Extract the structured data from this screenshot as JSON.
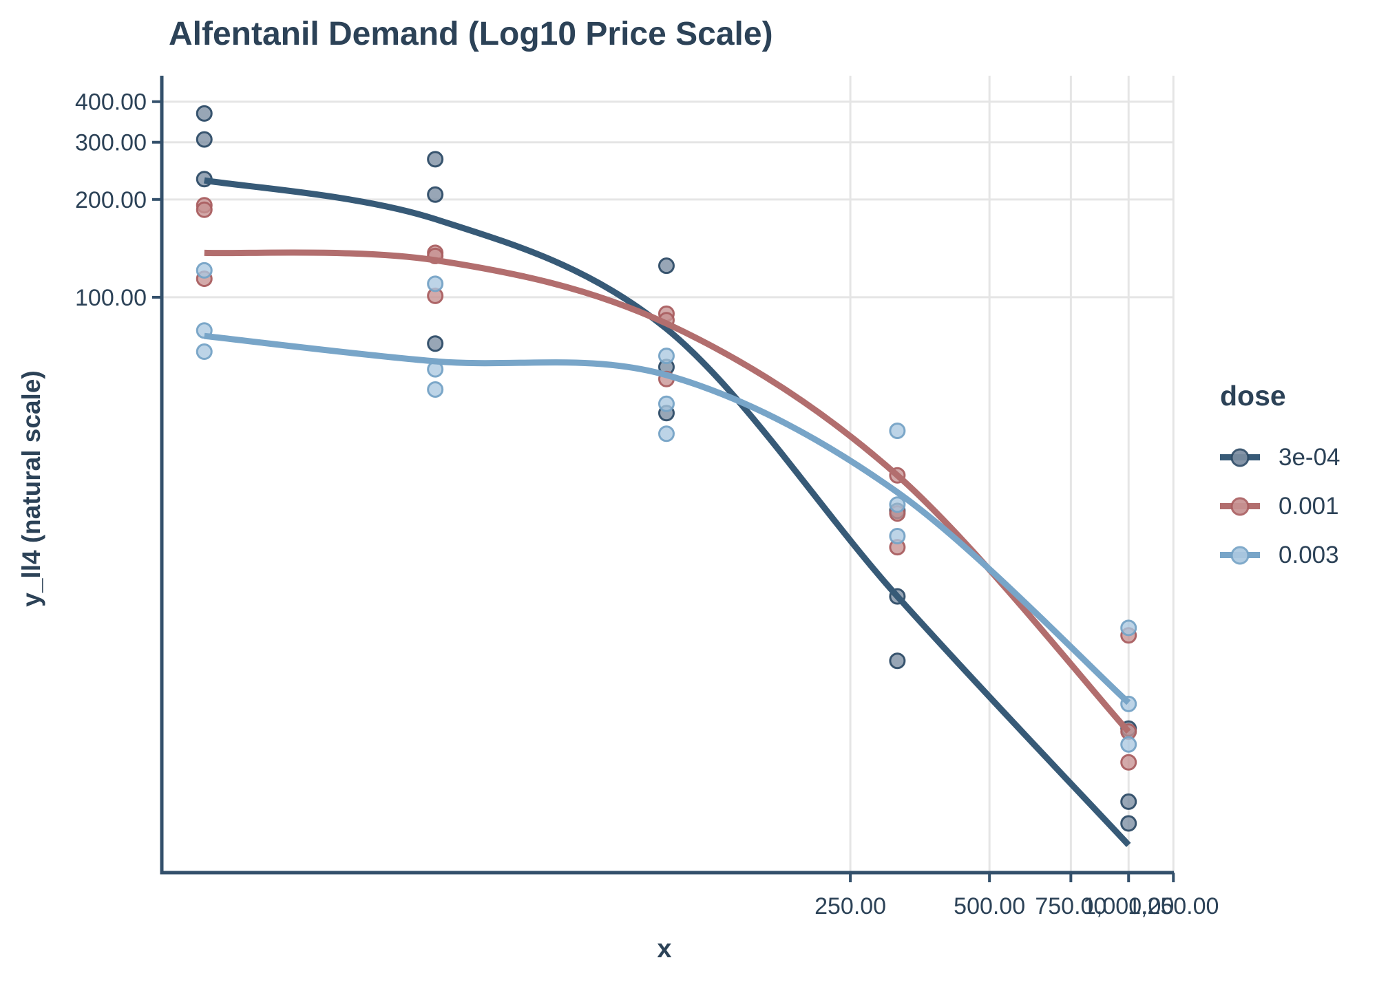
{
  "title": "Alfentanil Demand (Log10 Price Scale)",
  "legend": {
    "title": "dose",
    "items": [
      {
        "label": "3e-04"
      },
      {
        "label": "0.001"
      },
      {
        "label": "0.003"
      }
    ]
  },
  "axes": {
    "x": {
      "label": "x",
      "scale": "log10",
      "tick_values": [
        250,
        500,
        750,
        1000,
        1250
      ],
      "tick_labels": [
        "250.00",
        "500.00",
        "750.00",
        "1,000.00",
        "1,250.00"
      ]
    },
    "y": {
      "label": "y_ll4 (natural scale)",
      "scale": "log10-spaced",
      "tick_values": [
        400,
        300,
        200,
        100
      ],
      "tick_labels": [
        "400.00",
        "300.00",
        "200.00",
        "100.00"
      ]
    }
  },
  "colors": {
    "text": "#2c4257",
    "axis": "#33506b",
    "grid": "#e5e5e5",
    "background": "#ffffff"
  },
  "chart_data": {
    "type": "scatter",
    "title": "Alfentanil Demand (Log10 Price Scale)",
    "xlabel": "x",
    "ylabel": "y_ll4 (natural scale)",
    "x_scale": "log10",
    "y_scale": "log10",
    "xlim_log": [
      0.908,
      3.098
    ],
    "ylim_log": [
      0.2288,
      2.682
    ],
    "x_clusters": [
      10,
      31.6,
      100,
      316,
      1000
    ],
    "grid": "major-only",
    "legend_position": "right",
    "series": [
      {
        "name": "3e-04",
        "curve_color": "#375a77",
        "point_fill": "#7b8da1",
        "point_stroke": "#2f4d68",
        "points": [
          [
            10,
            368
          ],
          [
            10,
            306
          ],
          [
            10,
            231
          ],
          [
            31.6,
            266
          ],
          [
            31.6,
            207
          ],
          [
            31.6,
            72
          ],
          [
            100,
            125
          ],
          [
            100,
            61
          ],
          [
            100,
            44
          ],
          [
            316,
            22
          ],
          [
            316,
            12
          ],
          [
            316,
            7.6
          ],
          [
            1000,
            4.7
          ],
          [
            1000,
            2.8
          ],
          [
            1000,
            2.4
          ]
        ],
        "curve": [
          [
            10,
            229
          ],
          [
            31.6,
            174
          ],
          [
            100,
            80
          ],
          [
            316,
            12
          ],
          [
            1000,
            2.06
          ]
        ]
      },
      {
        "name": "0.001",
        "curve_color": "#b26e6e",
        "point_fill": "#c79292",
        "point_stroke": "#aa5f61",
        "points": [
          [
            10,
            192
          ],
          [
            10,
            186
          ],
          [
            10,
            114
          ],
          [
            31.6,
            137
          ],
          [
            31.6,
            134
          ],
          [
            31.6,
            101
          ],
          [
            100,
            89
          ],
          [
            100,
            85
          ],
          [
            100,
            56
          ],
          [
            316,
            28.3
          ],
          [
            316,
            21.6
          ],
          [
            316,
            17
          ],
          [
            1000,
            9.1
          ],
          [
            1000,
            4.6
          ],
          [
            1000,
            3.7
          ]
        ],
        "curve": [
          [
            10,
            137
          ],
          [
            31.6,
            130
          ],
          [
            100,
            83
          ],
          [
            316,
            28.3
          ],
          [
            1000,
            4.6
          ]
        ]
      },
      {
        "name": "0.003",
        "curve_color": "#78a5c8",
        "point_fill": "#abc8e0",
        "point_stroke": "#76a3c6",
        "points": [
          [
            10,
            121
          ],
          [
            10,
            79
          ],
          [
            10,
            68
          ],
          [
            31.6,
            110
          ],
          [
            31.6,
            60
          ],
          [
            31.6,
            52
          ],
          [
            100,
            66
          ],
          [
            100,
            47
          ],
          [
            100,
            38
          ],
          [
            316,
            38.8
          ],
          [
            316,
            23
          ],
          [
            316,
            18.4
          ],
          [
            1000,
            9.6
          ],
          [
            1000,
            5.6
          ],
          [
            1000,
            4.2
          ]
        ],
        "curve": [
          [
            10,
            76
          ],
          [
            31.6,
            63.5
          ],
          [
            100,
            57.6
          ],
          [
            316,
            25.1
          ],
          [
            1000,
            5.65
          ]
        ]
      }
    ]
  }
}
